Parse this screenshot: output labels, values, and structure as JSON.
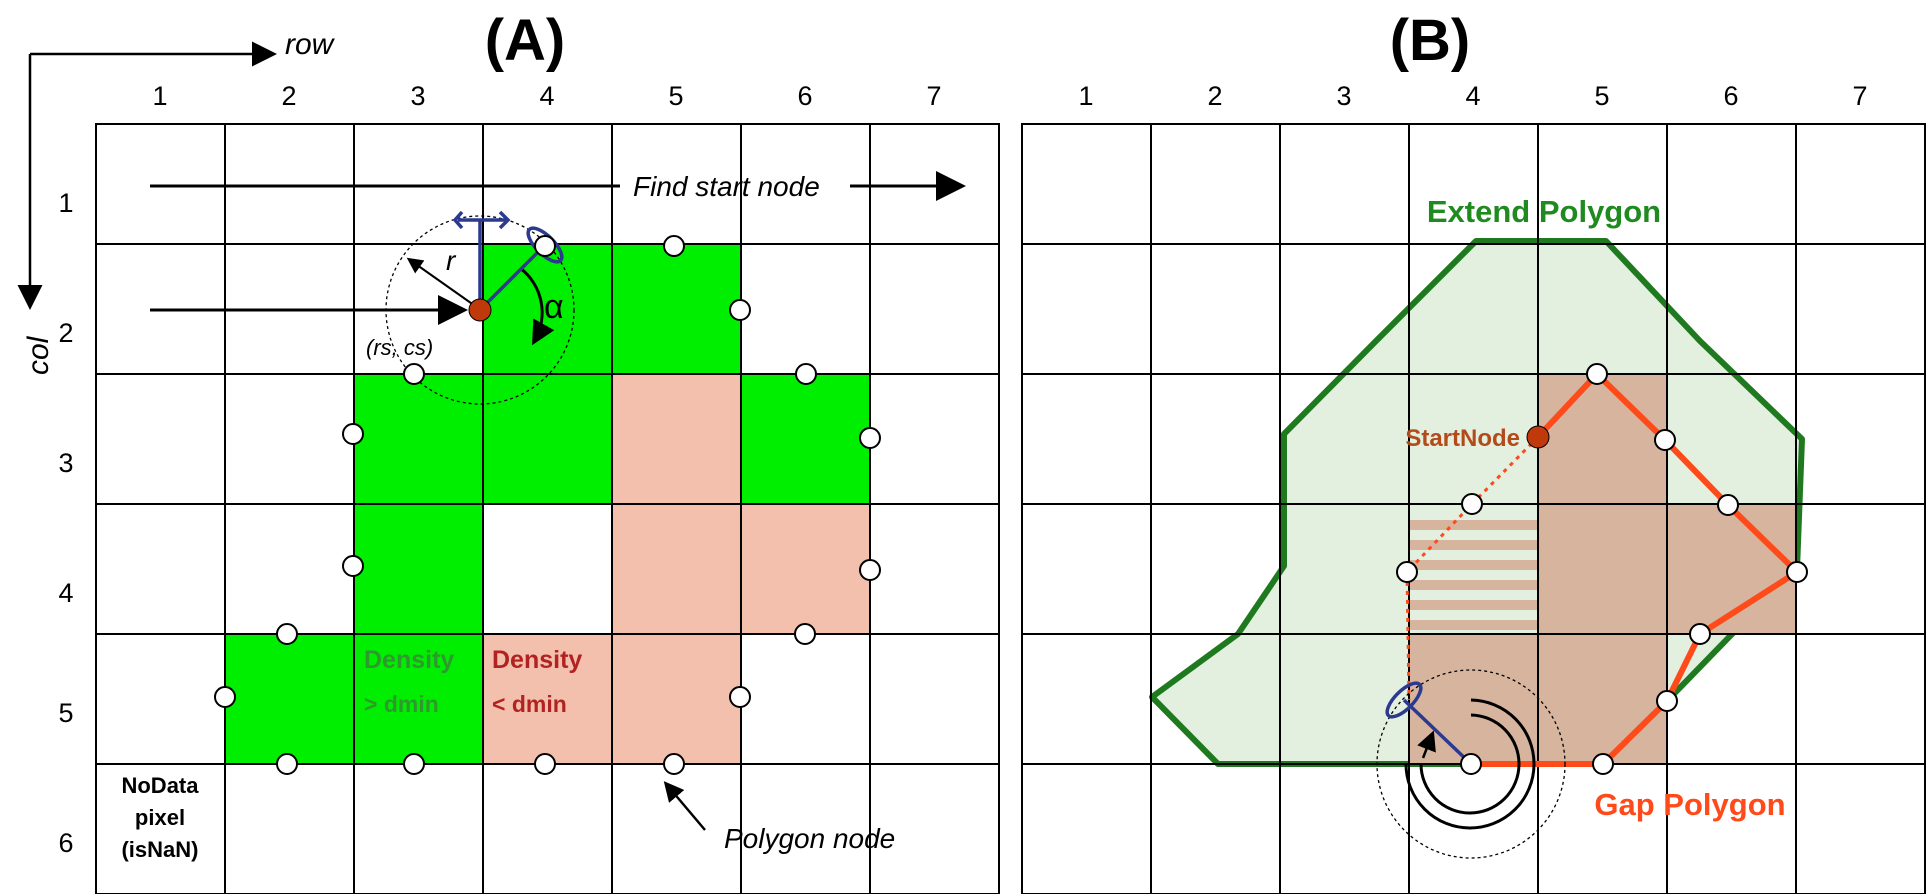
{
  "panel_a": {
    "title": "(A)",
    "axis_row_label": "row",
    "axis_col_label": "col",
    "column_numbers": [
      "1",
      "2",
      "3",
      "4",
      "5",
      "6",
      "7"
    ],
    "row_numbers": [
      "1",
      "2",
      "3",
      "4",
      "5",
      "6"
    ],
    "find_start_node_label": "Find start node",
    "radius_label": "r",
    "angle_label": "α",
    "start_coord_label": "(rs, cs)",
    "density_high_label": "Density",
    "density_high_cond": "> dmin",
    "density_low_label": "Density",
    "density_low_cond": "< dmin",
    "nodata_line1": "NoData",
    "nodata_line2": "pixel",
    "nodata_line3": "(isNaN)",
    "polygon_node_label": "Polygon node"
  },
  "panel_b": {
    "title": "(B)",
    "column_numbers": [
      "1",
      "2",
      "3",
      "4",
      "5",
      "6",
      "7"
    ],
    "extend_polygon_label": "Extend Polygon",
    "start_node_label": "StartNode",
    "gap_polygon_label": "Gap Polygon"
  },
  "colors": {
    "dense_green": "#00ee00",
    "sparse_salmon": "#f2c0ac",
    "extend_polygon_stroke": "#1f7a1f",
    "extend_polygon_fill": "#e3f0e0",
    "gap_polygon_stroke": "#ff4a1a",
    "gap_fill": "#d7b49e",
    "start_node": "#c0390b",
    "direction_arrow": "#2b3a8f",
    "density_high_text": "#2e9a2e",
    "density_low_text": "#b22222",
    "start_node_text": "#b34a1a",
    "gap_label_text": "#ff4a1a",
    "extend_label_text": "#1f8a1f"
  }
}
